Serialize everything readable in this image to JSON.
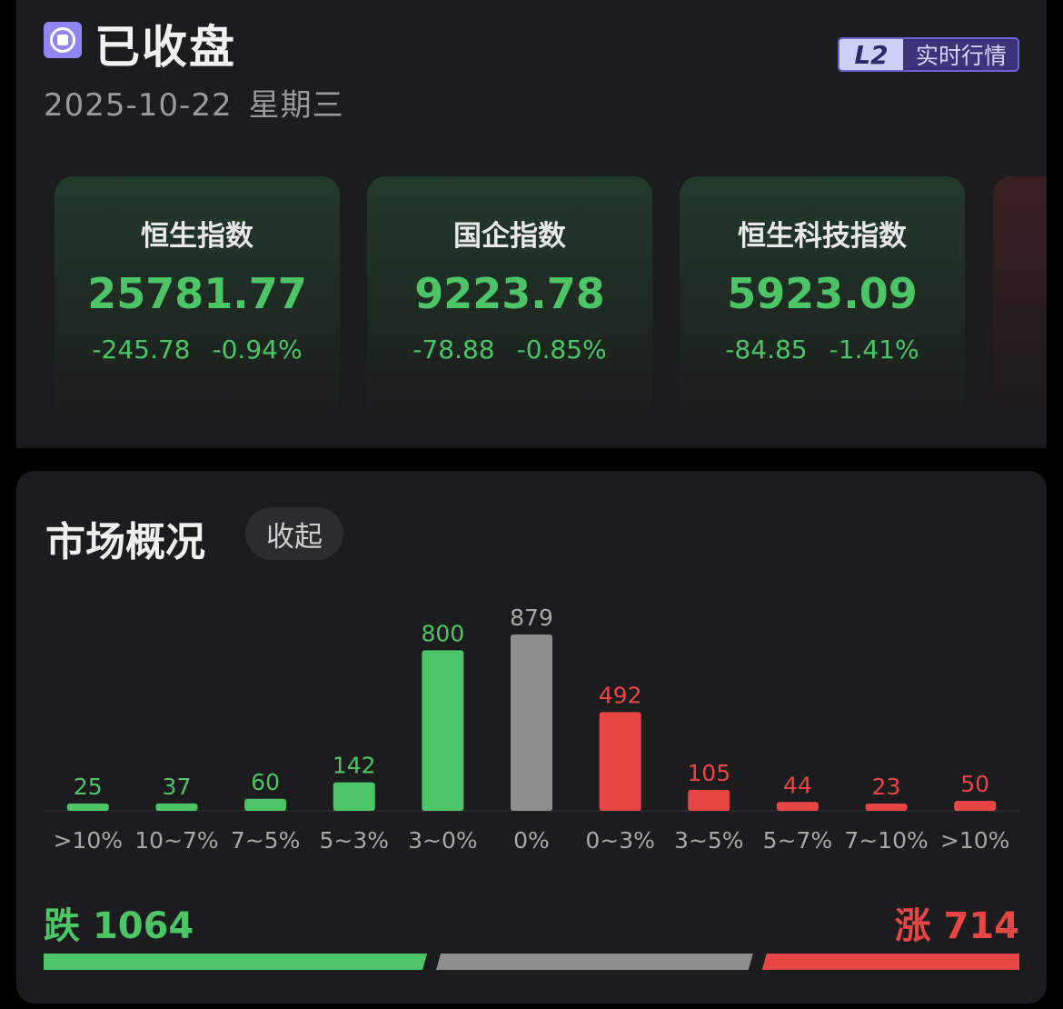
{
  "status": {
    "title": "已收盘",
    "date": "2025-10-22",
    "weekday": "星期三"
  },
  "badge": {
    "level": "L2",
    "text": "实时行情"
  },
  "indices": [
    {
      "name": "恒生指数",
      "value": "25781.77",
      "change": "-245.78",
      "pct": "-0.94%"
    },
    {
      "name": "国企指数",
      "value": "9223.78",
      "change": "-78.88",
      "pct": "-0.85%"
    },
    {
      "name": "恒生科技指数",
      "value": "5923.09",
      "change": "-84.85",
      "pct": "-1.41%"
    }
  ],
  "overview": {
    "title": "市场概况",
    "collapse_label": "收起"
  },
  "colors": {
    "down": "#4cc566",
    "flat": "#8e8e8e",
    "up": "#e84545"
  },
  "chart_data": {
    "type": "bar",
    "categories": [
      ">10%",
      "10~7%",
      "7~5%",
      "5~3%",
      "3~0%",
      "0%",
      "0~3%",
      "3~5%",
      "5~7%",
      "7~10%",
      ">10%"
    ],
    "values": [
      25,
      37,
      60,
      142,
      800,
      879,
      492,
      105,
      44,
      23,
      50
    ],
    "bar_colors": [
      "down",
      "down",
      "down",
      "down",
      "down",
      "flat",
      "up",
      "up",
      "up",
      "up",
      "up"
    ]
  },
  "totals": {
    "down_label": "跌",
    "down_count": "1064",
    "up_label": "涨",
    "up_count": "714",
    "flat_count": 879
  }
}
